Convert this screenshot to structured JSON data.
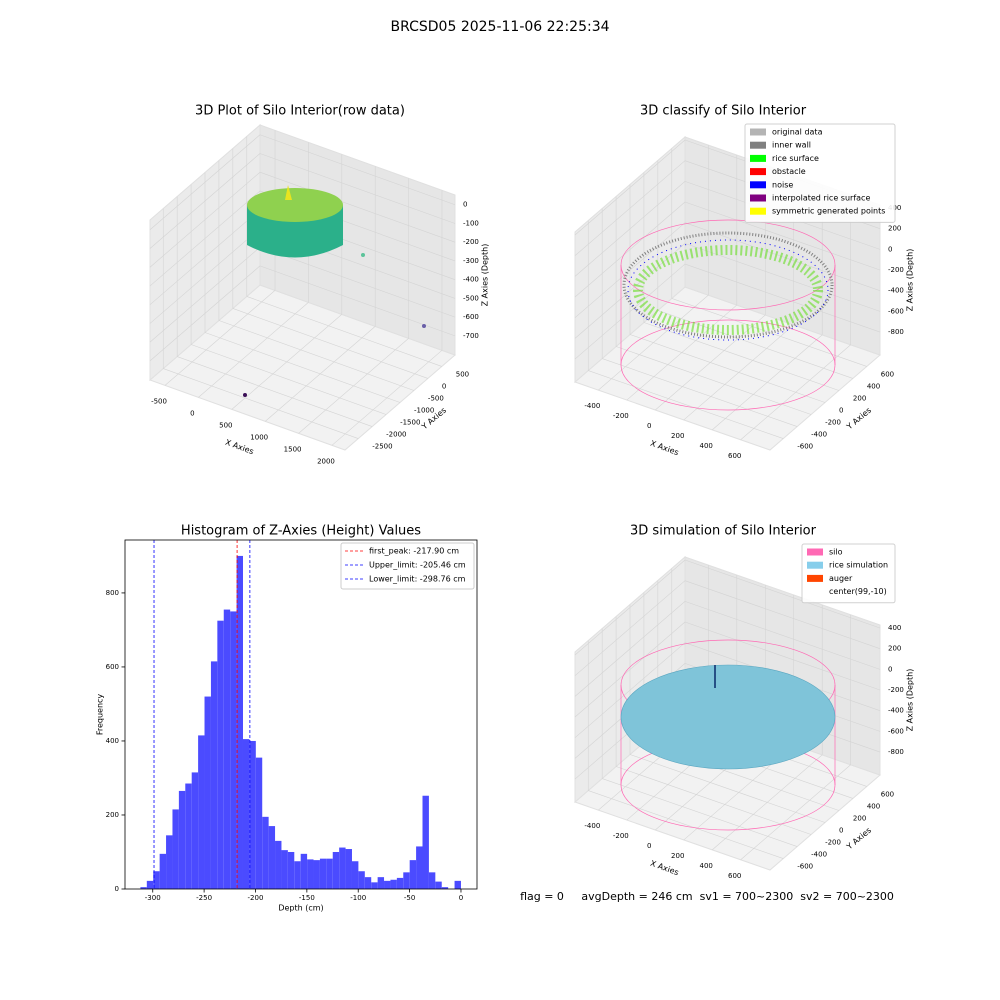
{
  "title": "BRCSD05 2025-11-06 22:25:34",
  "footer": "flag = 0     avgDepth = 246 cm  sv1 = 700~2300  sv2 = 700~2300",
  "chart_data": [
    {
      "type": "scatter3d",
      "title": "3D Plot of Silo Interior(row data)",
      "xlabel": "X Axies",
      "ylabel": "Y Axies",
      "zlabel": "Z Axies (Depth)",
      "xlim": [
        -725,
        2195
      ],
      "ylim": [
        -2975,
        975
      ],
      "zlim": [
        -802,
        52
      ],
      "xticks": [
        -500,
        0,
        500,
        1000,
        1500,
        2000
      ],
      "yticks": [
        -2500,
        -2000,
        -1500,
        -1000,
        -500,
        0,
        500
      ],
      "zticks": [
        -700,
        -600,
        -500,
        -400,
        -300,
        -200,
        -100,
        0
      ]
    },
    {
      "type": "scatter3d",
      "title": "3D classify of Silo Interior",
      "xlabel": "X Axies",
      "ylabel": "Y Axies",
      "zlabel": "Z Axies (Depth)",
      "xlim": [
        -564,
        806
      ],
      "ylim": [
        -790,
        790
      ],
      "zlim": [
        -1022,
        429
      ],
      "xticks": [
        -400,
        -200,
        0,
        200,
        400,
        600
      ],
      "yticks": [
        -600,
        -400,
        -200,
        0,
        200,
        400,
        600
      ],
      "zticks": [
        -800,
        -600,
        -400,
        -200,
        0,
        200,
        400
      ],
      "legend": [
        {
          "name": "original data",
          "color": "#b4b4b4"
        },
        {
          "name": "inner wall",
          "color": "#808080"
        },
        {
          "name": "rice surface",
          "color": "#00ff00"
        },
        {
          "name": "obstacle",
          "color": "#ff0000"
        },
        {
          "name": "noise",
          "color": "#0000ff"
        },
        {
          "name": "interpolated rice surface",
          "color": "#800080"
        },
        {
          "name": "symmetric generated points",
          "color": "#ffff00"
        }
      ]
    },
    {
      "type": "histogram",
      "title": "Histogram of Z-Axies (Height) Values",
      "xlabel": "Depth (cm)",
      "ylabel": "Frequency",
      "color": "#4b4bff",
      "bins": [
        -312,
        -305.76,
        -299.52,
        -293.28,
        -287.04,
        -280.8,
        -274.56,
        -268.32,
        -262.08,
        -255.84,
        -249.6,
        -243.36,
        -237.12,
        -230.88,
        -224.64,
        -218.4,
        -212.16,
        -205.92,
        -199.68,
        -193.44,
        -187.2,
        -180.96,
        -174.72,
        -168.48,
        -162.24,
        -156,
        -149.76,
        -143.52,
        -137.28,
        -131.04,
        -124.8,
        -118.56,
        -112.32,
        -106.08,
        -99.84,
        -93.6,
        -87.36,
        -81.12,
        -74.88,
        -68.64,
        -62.4,
        -56.16,
        -49.92,
        -43.68,
        -37.44,
        -31.2,
        -24.96,
        -18.72,
        -12.48,
        -6.24,
        0
      ],
      "counts": [
        5,
        22,
        48,
        95,
        145,
        215,
        265,
        285,
        315,
        415,
        520,
        615,
        725,
        755,
        750,
        900,
        405,
        400,
        355,
        195,
        170,
        130,
        105,
        100,
        75,
        95,
        80,
        78,
        82,
        82,
        100,
        112,
        108,
        75,
        48,
        32,
        18,
        32,
        22,
        25,
        30,
        45,
        78,
        115,
        252,
        45,
        20,
        5,
        0,
        22
      ],
      "xlim": [
        -327,
        15.6
      ],
      "ylim": [
        0,
        943
      ],
      "xticks": [
        -300,
        -250,
        -200,
        -150,
        -100,
        -50,
        0
      ],
      "yticks": [
        0,
        200,
        400,
        600,
        800
      ],
      "vlines": [
        {
          "label": "first_peak: -217.90 cm",
          "value": -217.9,
          "color": "#ff0000"
        },
        {
          "label": "Upper_limit: -205.46 cm",
          "value": -205.46,
          "color": "#0000ff"
        },
        {
          "label": "Lower_limit: -298.76 cm",
          "value": -298.76,
          "color": "#0000ff"
        }
      ]
    },
    {
      "type": "surface3d",
      "title": "3D simulation of Silo Interior",
      "xlabel": "X Axies",
      "ylabel": "Y Axies",
      "zlabel": "Z Axies (Depth)",
      "xlim": [
        -564,
        806
      ],
      "ylim": [
        -790,
        790
      ],
      "zlim": [
        -1022,
        429
      ],
      "xticks": [
        -400,
        -200,
        0,
        200,
        400,
        600
      ],
      "yticks": [
        -600,
        -400,
        -200,
        0,
        200,
        400,
        600
      ],
      "zticks": [
        -800,
        -600,
        -400,
        -200,
        0,
        200,
        400
      ],
      "legend": [
        {
          "name": "silo",
          "color": "#ff69b4"
        },
        {
          "name": "rice simulation",
          "color": "#87ceeb"
        },
        {
          "name": "auger",
          "color": "#ff4500"
        },
        {
          "name": "center(99,-10)",
          "color": "#ffffff"
        }
      ]
    }
  ]
}
